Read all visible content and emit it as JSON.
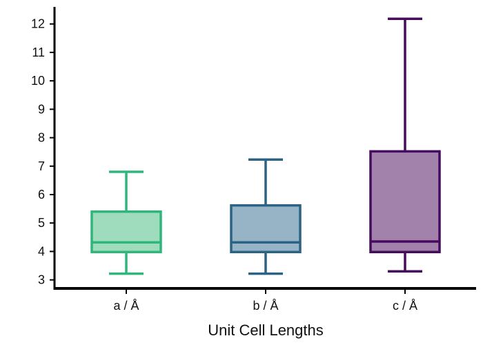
{
  "chart_data": {
    "type": "box",
    "title": "",
    "xlabel": "Unit Cell Lengths",
    "ylabel": "",
    "ylim": [
      2.7,
      12.6
    ],
    "yticks": [
      3,
      4,
      5,
      6,
      7,
      8,
      9,
      10,
      11,
      12
    ],
    "grid": false,
    "legend": "none",
    "categories": [
      "a / Å",
      "b / Å",
      "c / Å"
    ],
    "boxes": [
      {
        "label": "a / Å",
        "whisker_low": 3.22,
        "q1": 3.98,
        "median": 4.32,
        "q3": 5.4,
        "whisker_high": 6.8,
        "edge_color": "#2db87a",
        "fill_color": "#9fdbbd"
      },
      {
        "label": "b / Å",
        "whisker_low": 3.22,
        "q1": 3.98,
        "median": 4.32,
        "q3": 5.62,
        "whisker_high": 7.23,
        "edge_color": "#2b6385",
        "fill_color": "#97b3c6"
      },
      {
        "label": "c / Å",
        "whisker_low": 3.3,
        "q1": 3.98,
        "median": 4.35,
        "q3": 7.52,
        "whisker_high": 12.18,
        "edge_color": "#460a5f",
        "fill_color": "#a281ab"
      }
    ]
  }
}
